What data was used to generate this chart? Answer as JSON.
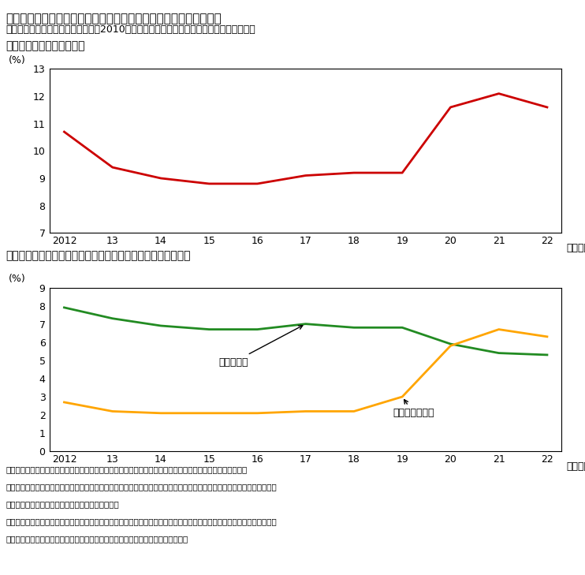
{
  "title": "第２－２－４図　我が国労働市場における需給ミスマッチ率の動向",
  "subtitle": "　　　　労働市場のミスマッチは、2010年代半ばまで低下傾向であったが、その後は上昇",
  "panel1_title": "（１）ミスマッチ率の推移",
  "panel2_title": "（２）要因別のミスマッチ率（職種間要因、都道府県間要因）",
  "years": [
    2012,
    2013,
    2014,
    2015,
    2016,
    2017,
    2018,
    2019,
    2020,
    2021,
    2022
  ],
  "red_values": [
    10.7,
    9.4,
    9.0,
    8.8,
    8.8,
    9.1,
    9.2,
    9.2,
    11.6,
    12.1,
    11.6
  ],
  "green_values": [
    7.9,
    7.3,
    6.9,
    6.7,
    6.7,
    7.0,
    6.8,
    6.8,
    5.9,
    5.4,
    5.3
  ],
  "orange_values": [
    2.7,
    2.2,
    2.1,
    2.1,
    2.1,
    2.2,
    2.2,
    3.0,
    5.8,
    6.7,
    6.3
  ],
  "red_color": "#cc0000",
  "green_color": "#228B22",
  "orange_color": "#FFA500",
  "ylabel_pct": "(%)",
  "xlabel_nendo": "（年度）",
  "panel1_ylim": [
    7,
    13
  ],
  "panel1_yticks": [
    7,
    8,
    9,
    10,
    11,
    12,
    13
  ],
  "panel2_ylim": [
    0,
    9
  ],
  "panel2_yticks": [
    0,
    1,
    2,
    3,
    4,
    5,
    6,
    7,
    8,
    9
  ],
  "xtick_labels": [
    "2012",
    "13",
    "14",
    "15",
    "16",
    "17",
    "18",
    "19",
    "20",
    "21",
    "22"
  ],
  "label_shokushu": "職種間要因",
  "label_todofuken": "都道府県間要因",
  "note1": "（備考）　１．厚生労働省「一般職業紹介状況（職業安定業務統計）：雇用関係指標（年度）」により作成。",
  "note2": "　　　　　２．求職者の雇用機会が最大となるよう職種間・都道府県間での求職者の再配分が行われた場合と、実現した雇",
  "note3": "　　　　　　　用の差を、ミスマッチとしている。",
  "note4": "　　　　　３．職種間要因とは、求職者は都道府県間で移動しないと仮定したときのミスマッチであり、都道府県間要因と",
  "note5": "　　　　　　　は、求職者は希望職種を変えないとしたときのミスマッチである。"
}
